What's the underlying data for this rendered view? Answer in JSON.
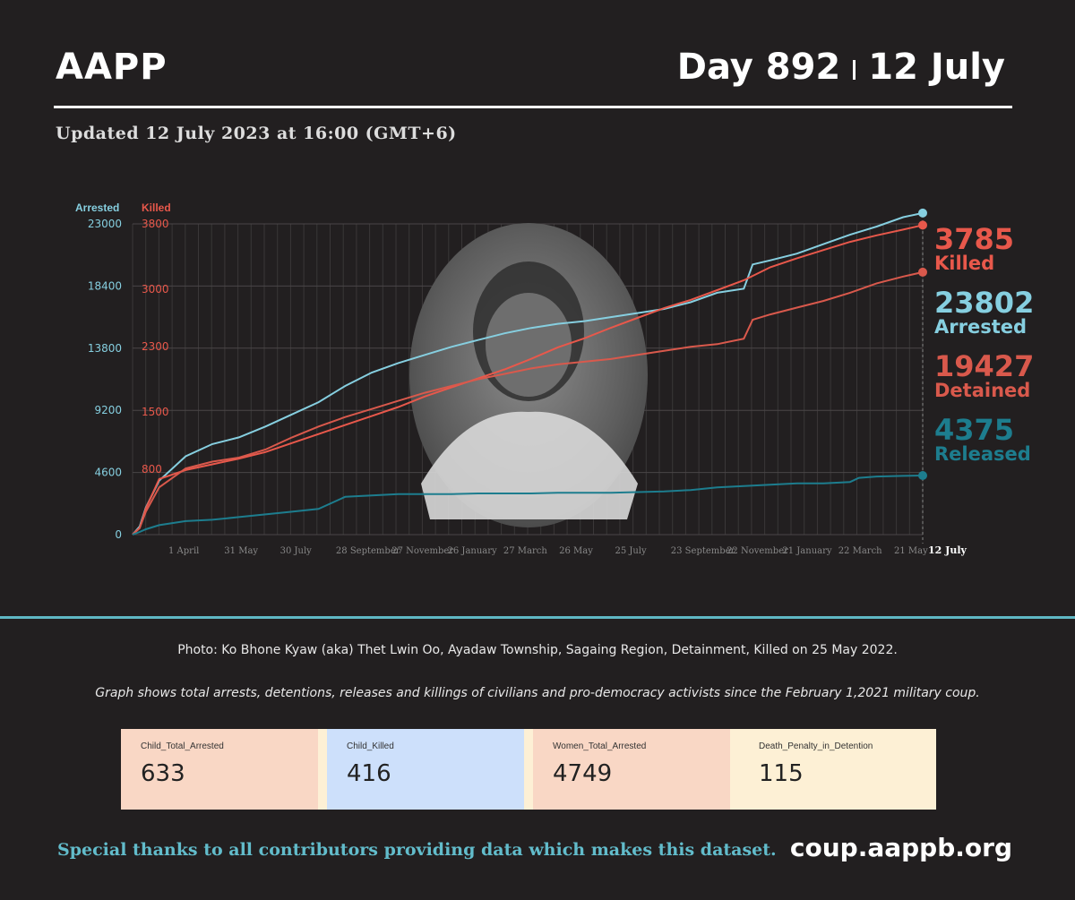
{
  "header": {
    "brand": "AAPP",
    "day": "Day 892",
    "date": "12 July",
    "updated": "Updated 12 July 2023 at 16:00 (GMT+6)"
  },
  "chart_data": {
    "type": "line",
    "left_axis": {
      "label": "Arrested",
      "ticks": [
        0,
        4600,
        9200,
        13800,
        18400,
        23000
      ],
      "ylim": [
        0,
        23000
      ],
      "color": "#86cfe0"
    },
    "right_axis": {
      "label": "Killed",
      "ticks": [
        0,
        800,
        1500,
        2300,
        3000,
        3800
      ],
      "ylim": [
        0,
        3800
      ],
      "color": "#e8584b"
    },
    "x_ticks": [
      "1 April",
      "31 May",
      "30 July",
      "28 September",
      "27 November",
      "26 January",
      "27 March",
      "26 May",
      "25 July",
      "23 September",
      "22 November",
      "21 January",
      "22 March",
      "21 May",
      "12 July"
    ],
    "series": [
      {
        "name": "Arrested",
        "axis": "left",
        "color": "#86cfe0",
        "final": 23802,
        "x": [
          0,
          8,
          15,
          30,
          60,
          90,
          120,
          150,
          180,
          210,
          240,
          270,
          300,
          330,
          360,
          390,
          420,
          450,
          480,
          510,
          540,
          570,
          600,
          630,
          660,
          690,
          700,
          720,
          750,
          780,
          810,
          840,
          870,
          892
        ],
        "values": [
          0,
          600,
          2000,
          4000,
          5800,
          6700,
          7200,
          8000,
          8900,
          9800,
          11000,
          12000,
          12700,
          13300,
          13900,
          14400,
          14900,
          15300,
          15600,
          15800,
          16100,
          16400,
          16700,
          17200,
          17900,
          18200,
          20000,
          20300,
          20800,
          21500,
          22200,
          22800,
          23500,
          23802
        ]
      },
      {
        "name": "Killed",
        "axis": "right",
        "color": "#e8584b",
        "final": 3785,
        "x": [
          0,
          8,
          15,
          30,
          60,
          90,
          120,
          150,
          180,
          210,
          240,
          270,
          300,
          330,
          360,
          390,
          420,
          450,
          480,
          510,
          540,
          570,
          600,
          630,
          660,
          690,
          720,
          750,
          780,
          810,
          840,
          870,
          892
        ],
        "values": [
          0,
          80,
          320,
          680,
          790,
          860,
          930,
          1010,
          1120,
          1230,
          1340,
          1450,
          1560,
          1690,
          1800,
          1910,
          2020,
          2150,
          2290,
          2400,
          2530,
          2650,
          2770,
          2870,
          2990,
          3110,
          3270,
          3380,
          3480,
          3580,
          3660,
          3730,
          3785
        ]
      },
      {
        "name": "Detained",
        "axis": "left",
        "color": "#d9594c",
        "final": 19427,
        "x": [
          0,
          8,
          15,
          30,
          60,
          90,
          120,
          150,
          180,
          210,
          240,
          270,
          300,
          330,
          360,
          390,
          420,
          450,
          480,
          510,
          540,
          570,
          600,
          630,
          660,
          690,
          700,
          720,
          750,
          780,
          810,
          840,
          870,
          892
        ],
        "values": [
          0,
          500,
          1700,
          3500,
          4900,
          5400,
          5700,
          6300,
          7200,
          8000,
          8700,
          9300,
          9900,
          10500,
          11000,
          11500,
          11900,
          12300,
          12600,
          12800,
          13000,
          13300,
          13600,
          13900,
          14100,
          14500,
          15900,
          16300,
          16800,
          17300,
          17900,
          18600,
          19100,
          19427
        ]
      },
      {
        "name": "Released",
        "axis": "left",
        "color": "#1d7d8e",
        "final": 4375,
        "x": [
          0,
          8,
          15,
          30,
          60,
          90,
          120,
          150,
          180,
          210,
          240,
          270,
          300,
          330,
          360,
          390,
          420,
          450,
          480,
          510,
          540,
          570,
          600,
          630,
          660,
          690,
          720,
          750,
          780,
          810,
          820,
          840,
          870,
          892
        ],
        "values": [
          0,
          200,
          400,
          700,
          1000,
          1100,
          1300,
          1500,
          1700,
          1900,
          2800,
          2900,
          3000,
          3000,
          3000,
          3050,
          3050,
          3050,
          3100,
          3100,
          3100,
          3150,
          3200,
          3300,
          3500,
          3600,
          3700,
          3800,
          3800,
          3900,
          4200,
          4300,
          4350,
          4375
        ]
      }
    ],
    "x_max": 892,
    "labels": [
      {
        "value": "3785",
        "text": "Killed",
        "color": "#e8584b"
      },
      {
        "value": "23802",
        "text": "Arrested",
        "color": "#86cfe0"
      },
      {
        "value": "19427",
        "text": "Detained",
        "color": "#d9594c"
      },
      {
        "value": "4375",
        "text": "Released",
        "color": "#1d7d8e"
      }
    ]
  },
  "captions": {
    "photo": "Photo: Ko Bhone Kyaw (aka) Thet Lwin Oo, Ayadaw Township, Sagaing Region, Detainment, Killed on 25 May 2022.",
    "note": "Graph shows total arrests, detentions, releases and killings of civilians and pro-democracy activists since the February 1,2021 military coup."
  },
  "stats": [
    {
      "label": "Child_Total_Arrested",
      "value": "633",
      "bg": "#f9d7c5"
    },
    {
      "label": "Child_Killed",
      "value": "416",
      "bg": "#cde0fb"
    },
    {
      "label": "Women_Total_Arrested",
      "value": "4749",
      "bg": "#f9d7c5"
    },
    {
      "label": "Death_Penalty_in_Detention",
      "value": "115",
      "bg": "#fdf0d5"
    }
  ],
  "footer": {
    "thanks": "Special thanks to all contributors providing data which makes this dataset.",
    "site": "coup.aappb.org"
  }
}
